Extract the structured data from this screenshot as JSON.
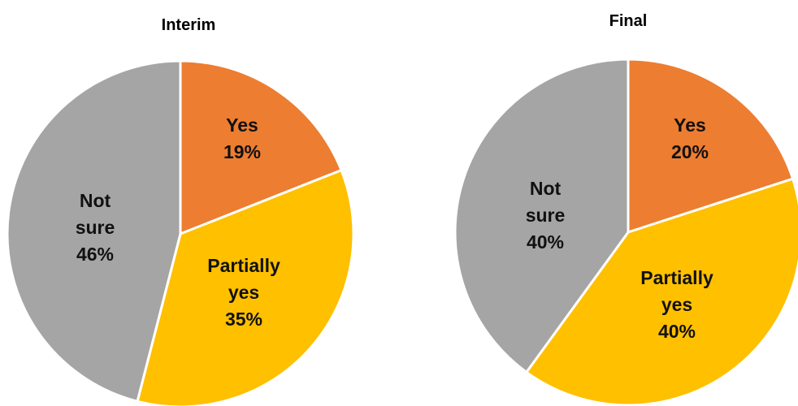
{
  "chart_data": [
    {
      "type": "pie",
      "title": "Interim",
      "categories": [
        "Yes",
        "Partially yes",
        "Not sure"
      ],
      "values": [
        19,
        35,
        46
      ],
      "percent_labels": [
        "19%",
        "35%",
        "46%"
      ],
      "label_lines": [
        [
          "Yes"
        ],
        [
          "Partially",
          "yes"
        ],
        [
          "Not",
          "sure"
        ]
      ],
      "colors": [
        "#ED7D31",
        "#FFC000",
        "#A5A5A5"
      ]
    },
    {
      "type": "pie",
      "title": "Final",
      "categories": [
        "Yes",
        "Partially yes",
        "Not sure"
      ],
      "values": [
        20,
        40,
        40
      ],
      "percent_labels": [
        "20%",
        "40%",
        "40%"
      ],
      "label_lines": [
        [
          "Yes"
        ],
        [
          "Partially",
          "yes"
        ],
        [
          "Not",
          "sure"
        ]
      ],
      "colors": [
        "#ED7D31",
        "#FFC000",
        "#A5A5A5"
      ]
    }
  ]
}
